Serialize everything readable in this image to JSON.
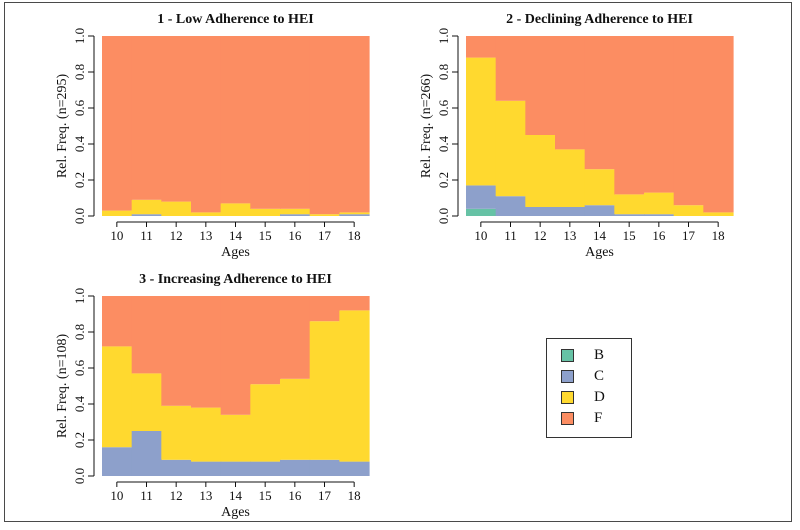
{
  "chart_data": [
    {
      "type": "area",
      "title": "1 - Low Adherence to HEI",
      "xlabel": "Ages",
      "ylabel": "Rel. Freq. (n=295)",
      "ylim": [
        0,
        1
      ],
      "yticks": [
        "0.0",
        "0.2",
        "0.4",
        "0.6",
        "0.8",
        "1.0"
      ],
      "categories": [
        "10",
        "11",
        "12",
        "13",
        "14",
        "15",
        "16",
        "17",
        "18"
      ],
      "series": [
        {
          "name": "B",
          "values": [
            0.0,
            0.0,
            0.0,
            0.0,
            0.0,
            0.0,
            0.0,
            0.0,
            0.0
          ]
        },
        {
          "name": "C",
          "values": [
            0.0,
            0.01,
            0.0,
            0.0,
            0.0,
            0.0,
            0.01,
            0.0,
            0.01
          ]
        },
        {
          "name": "D",
          "values": [
            0.03,
            0.08,
            0.08,
            0.02,
            0.07,
            0.04,
            0.03,
            0.01,
            0.01
          ]
        },
        {
          "name": "F",
          "values": [
            0.97,
            0.91,
            0.92,
            0.98,
            0.93,
            0.96,
            0.96,
            0.99,
            0.98
          ]
        }
      ]
    },
    {
      "type": "area",
      "title": "2 - Declining Adherence to HEI",
      "xlabel": "Ages",
      "ylabel": "Rel. Freq. (n=266)",
      "ylim": [
        0,
        1
      ],
      "yticks": [
        "0.0",
        "0.2",
        "0.4",
        "0.6",
        "0.8",
        "1.0"
      ],
      "categories": [
        "10",
        "11",
        "12",
        "13",
        "14",
        "15",
        "16",
        "17",
        "18"
      ],
      "series": [
        {
          "name": "B",
          "values": [
            0.04,
            0.0,
            0.0,
            0.0,
            0.0,
            0.0,
            0.0,
            0.0,
            0.0
          ]
        },
        {
          "name": "C",
          "values": [
            0.13,
            0.11,
            0.05,
            0.05,
            0.06,
            0.01,
            0.01,
            0.0,
            0.0
          ]
        },
        {
          "name": "D",
          "values": [
            0.71,
            0.53,
            0.4,
            0.32,
            0.2,
            0.11,
            0.12,
            0.06,
            0.02
          ]
        },
        {
          "name": "F",
          "values": [
            0.12,
            0.36,
            0.55,
            0.63,
            0.74,
            0.88,
            0.87,
            0.94,
            0.98
          ]
        }
      ]
    },
    {
      "type": "area",
      "title": "3 - Increasing Adherence to HEI",
      "xlabel": "Ages",
      "ylabel": "Rel. Freq. (n=108)",
      "ylim": [
        0,
        1
      ],
      "yticks": [
        "0.0",
        "0.2",
        "0.4",
        "0.6",
        "0.8",
        "1.0"
      ],
      "categories": [
        "10",
        "11",
        "12",
        "13",
        "14",
        "15",
        "16",
        "17",
        "18"
      ],
      "series": [
        {
          "name": "B",
          "values": [
            0.0,
            0.0,
            0.0,
            0.0,
            0.0,
            0.0,
            0.0,
            0.0,
            0.0
          ]
        },
        {
          "name": "C",
          "values": [
            0.16,
            0.25,
            0.09,
            0.08,
            0.08,
            0.08,
            0.09,
            0.09,
            0.08
          ]
        },
        {
          "name": "D",
          "values": [
            0.56,
            0.32,
            0.3,
            0.3,
            0.26,
            0.43,
            0.45,
            0.77,
            0.84
          ]
        },
        {
          "name": "F",
          "values": [
            0.28,
            0.43,
            0.61,
            0.62,
            0.66,
            0.49,
            0.46,
            0.14,
            0.08
          ]
        }
      ]
    }
  ],
  "legend": {
    "entries": [
      {
        "label": "B",
        "color": "#66c2a5"
      },
      {
        "label": "C",
        "color": "#8da0cb"
      },
      {
        "label": "D",
        "color": "#ffd92f"
      },
      {
        "label": "F",
        "color": "#fc8d62"
      }
    ]
  }
}
